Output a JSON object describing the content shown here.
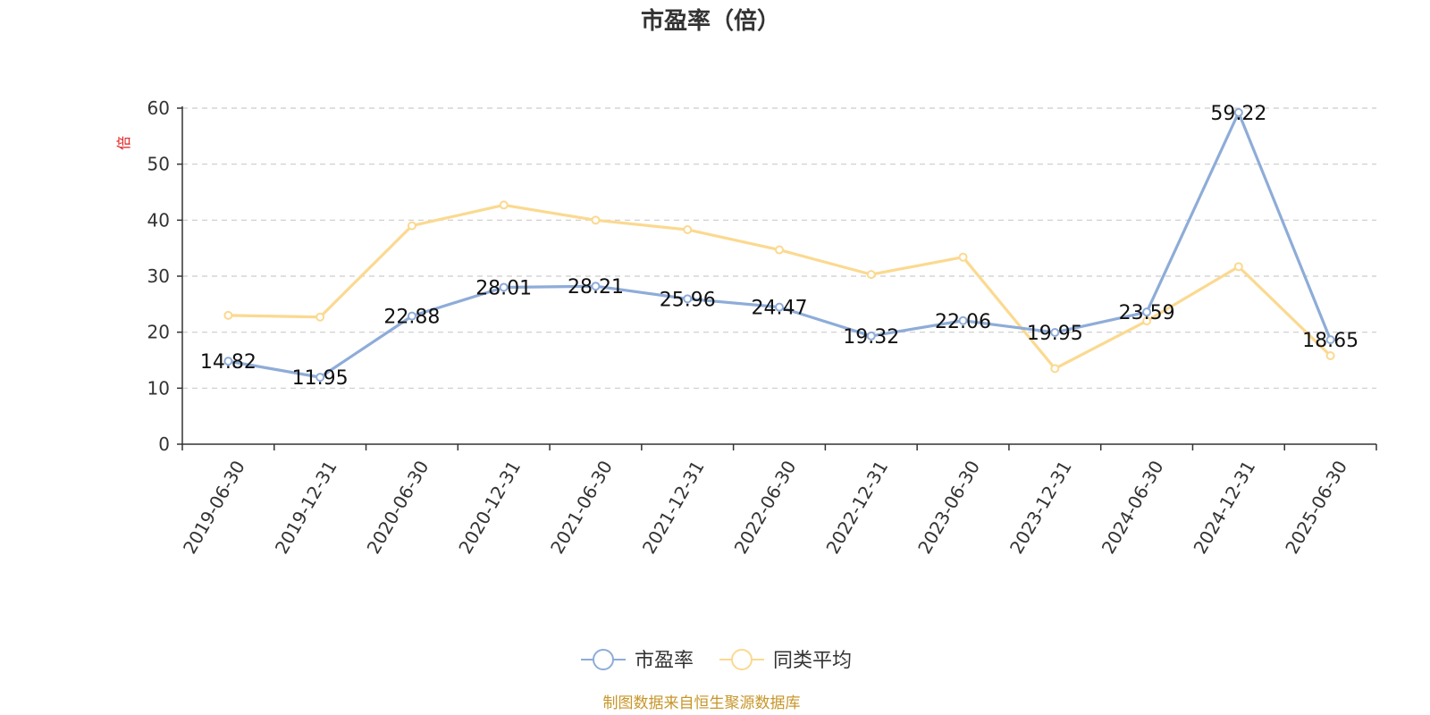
{
  "chart_data": {
    "type": "line",
    "title": "市盈率（倍）",
    "y_unit": "倍",
    "ylim": [
      0,
      60
    ],
    "yticks": [
      0,
      10,
      20,
      30,
      40,
      50,
      60
    ],
    "grid": true,
    "legend_position": "bottom",
    "categories": [
      "2019-06-30",
      "2019-12-31",
      "2020-06-30",
      "2020-12-31",
      "2021-06-30",
      "2021-12-31",
      "2022-06-30",
      "2022-12-31",
      "2023-06-30",
      "2023-12-31",
      "2024-06-30",
      "2024-12-31",
      "2025-06-30"
    ],
    "series": [
      {
        "name": "市盈率",
        "color": "#8eacd8",
        "show_labels": true,
        "values": [
          14.82,
          11.95,
          22.88,
          28.01,
          28.21,
          25.96,
          24.47,
          19.32,
          22.06,
          19.95,
          23.59,
          59.22,
          18.65
        ]
      },
      {
        "name": "同类平均",
        "color": "#fbd990",
        "show_labels": false,
        "values": [
          23.0,
          22.7,
          39.0,
          42.7,
          40.0,
          38.3,
          34.7,
          30.3,
          33.4,
          13.5,
          22.0,
          31.7,
          15.8
        ]
      }
    ],
    "labels": [
      "14.82",
      "11.95",
      "22.88",
      "28.01",
      "28.21",
      "25.96",
      "24.47",
      "19.32",
      "22.06",
      "19.95",
      "23.59",
      "59.22",
      "18.65"
    ]
  },
  "footer": {
    "source": "制图数据来自恒生聚源数据库",
    "source_color": "#c8962a"
  },
  "colors": {
    "axis": "#333333",
    "grid": "#cccccc",
    "unit": "#e02020"
  }
}
